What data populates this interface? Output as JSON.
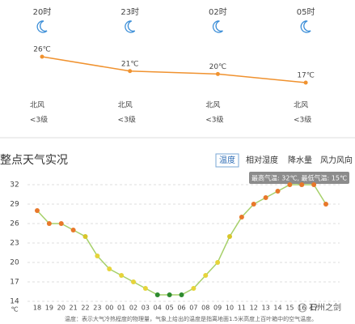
{
  "chart_data": [
    {
      "type": "line",
      "categories": [
        "20时",
        "23时",
        "02时",
        "05时"
      ],
      "values": [
        26,
        21,
        20,
        17
      ],
      "value_labels": [
        "26℃",
        "21℃",
        "20℃",
        "17℃"
      ],
      "color": "#f0922f",
      "wind_directions": [
        "北风",
        "北风",
        "北风",
        "北风"
      ],
      "wind_levels": [
        "<3级",
        "<3级",
        "<3级",
        "<3级"
      ]
    },
    {
      "type": "line",
      "title": "整点天气实况",
      "tabs": [
        "温度",
        "相对湿度",
        "降水量",
        "风力风向"
      ],
      "tooltip": "最高气温: 32℃, 最低气温: 15℃",
      "categories": [
        "18",
        "19",
        "20",
        "21",
        "22",
        "23",
        "00",
        "01",
        "02",
        "03",
        "04",
        "05",
        "06",
        "07",
        "08",
        "09",
        "10",
        "11",
        "12",
        "13",
        "14",
        "15",
        "16",
        "17",
        null
      ],
      "values": [
        28,
        26,
        26,
        25,
        24,
        21,
        19,
        18,
        17,
        16,
        15,
        15,
        15,
        16,
        18,
        20,
        24,
        27,
        29,
        30,
        31,
        32,
        32,
        32,
        29
      ],
      "point_colors": [
        "#e8782a",
        "#e8782a",
        "#e8782a",
        "#e8782a",
        "#d8c62a",
        "#e6d43a",
        "#e6d43a",
        "#e6d43a",
        "#e6d43a",
        "#e6d43a",
        "#2e8b2e",
        "#2e8b2e",
        "#2e8b2e",
        "#e6d43a",
        "#e6d43a",
        "#e6d43a",
        "#d8c62a",
        "#e8782a",
        "#e8782a",
        "#e8782a",
        "#e8782a",
        "#e8782a",
        "#e8782a",
        "#e8782a",
        "#e8782a"
      ],
      "color": "#a6d06a",
      "ylabel": "℃",
      "ylim": [
        14,
        32
      ],
      "yticks": [
        14,
        17,
        20,
        23,
        26,
        29,
        32
      ],
      "grid": true,
      "footnote": "温度：表示大气冷热程度的物理量，气象上给出的温度是指离地面1.5米高度上百叶箱中的空气温度。",
      "watermark": "石州之剑"
    }
  ]
}
